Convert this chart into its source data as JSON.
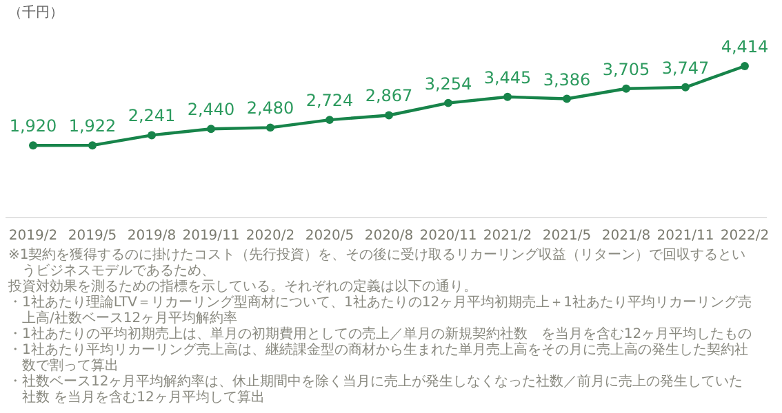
{
  "chart_data": {
    "type": "line",
    "ylabel": "（千円）",
    "categories": [
      "2019/2",
      "2019/5",
      "2019/8",
      "2019/11",
      "2020/2",
      "2020/5",
      "2020/8",
      "2020/11",
      "2021/2",
      "2021/5",
      "2021/8",
      "2021/11",
      "2022/2"
    ],
    "series": [
      {
        "color": "#17844a",
        "values": [
          1920,
          1922,
          2241,
          2440,
          2480,
          2724,
          2867,
          3254,
          3445,
          3386,
          3705,
          3747,
          4414
        ],
        "value_labels": [
          "1,920",
          "1,922",
          "2,241",
          "2,440",
          "2,480",
          "2,724",
          "2,867",
          "3,254",
          "3,445",
          "3,386",
          "3,705",
          "3,747",
          "4,414"
        ]
      }
    ],
    "marker": "circle",
    "grid": false,
    "tick_labels": "x",
    "annotations": [
      "※1契約を獲得するのに掛けたコスト（先行投資）を、その後に受け取るリカーリング収益（リターン）で回収するというビジネスモデルであるため、",
      "投資対効果を測るための指標を示している。それぞれの定義は以下の通り。",
      "・1社あたり理論LTV＝リカーリング型商材について、1社あたりの12ヶ月平均初期売上＋1社あたり平均リカーリング売上高/社数ベース12ヶ月平均解約率",
      "・1社あたりの平均初期売上は、単月の初期費用としての売上／単月の新規契約社数　を当月を含む12ヶ月平均したもの",
      "・1社あたり平均リカーリング売上高は、継続課金型の商材から生まれた単月売上高をその月に売上高の発生した契約社数で割って算出",
      "・社数ベース12ヶ月平均解約率は、休止期間中を除く当月に売上が発生しなくなった社数／前月に売上の発生していた社数 を当月を含む12ヶ月平均して算出"
    ]
  }
}
